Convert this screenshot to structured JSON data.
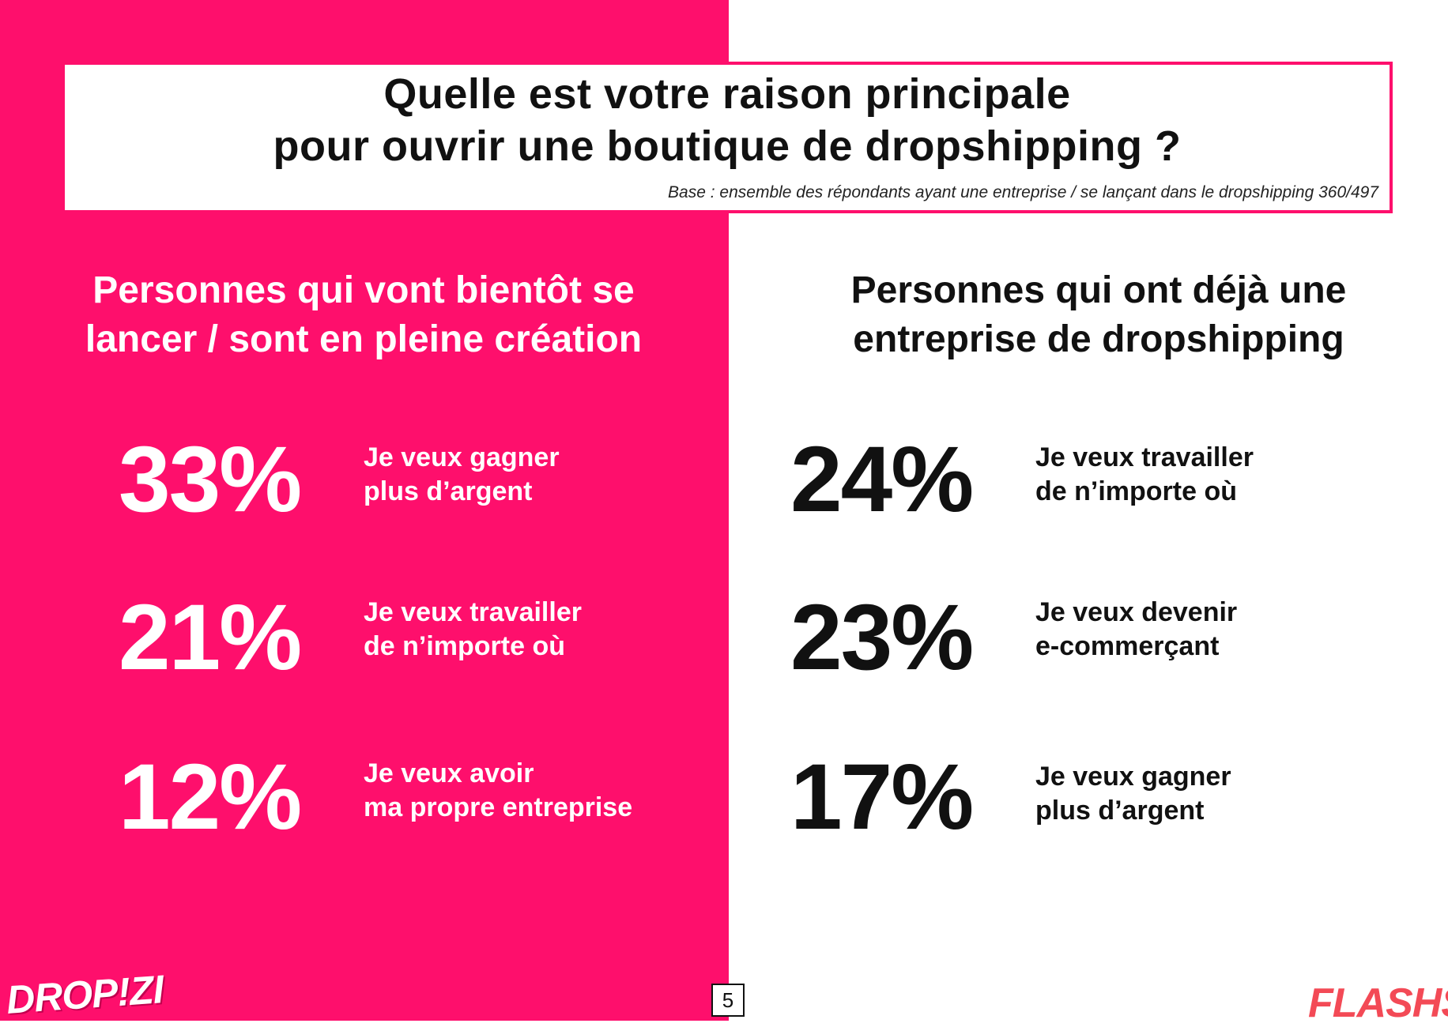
{
  "colors": {
    "brand_pink": "#fe0f6c",
    "text_dark": "#111111",
    "white": "#ffffff"
  },
  "title": {
    "line1": "Quelle est votre raison principale",
    "line2": "pour ouvrir une boutique de dropshipping ?",
    "base_note": "Base : ensemble des répondants ayant une entreprise / se lançant dans le dropshipping  360/497"
  },
  "left": {
    "heading_line1": "Personnes qui vont bientôt se",
    "heading_line2": "lancer / sont en pleine création",
    "items": [
      {
        "percent": "33%",
        "reason_line1": "Je veux gagner",
        "reason_line2": "plus d’argent"
      },
      {
        "percent": "21%",
        "reason_line1": "Je veux travailler",
        "reason_line2": "de n’importe où"
      },
      {
        "percent": "12%",
        "reason_line1": "Je veux avoir",
        "reason_line2": "ma propre entreprise"
      }
    ]
  },
  "right": {
    "heading_line1": "Personnes qui ont déjà une",
    "heading_line2": "entreprise de dropshipping",
    "items": [
      {
        "percent": "24%",
        "reason_line1": "Je veux travailler",
        "reason_line2": "de n’importe où"
      },
      {
        "percent": "23%",
        "reason_line1": "Je veux devenir",
        "reason_line2": "e-commerçant"
      },
      {
        "percent": "17%",
        "reason_line1": "Je veux gagner",
        "reason_line2": "plus d’argent"
      }
    ]
  },
  "footer": {
    "page_number": "5",
    "logo_left": "DROP!ZI",
    "logo_right": "FLASHS"
  }
}
